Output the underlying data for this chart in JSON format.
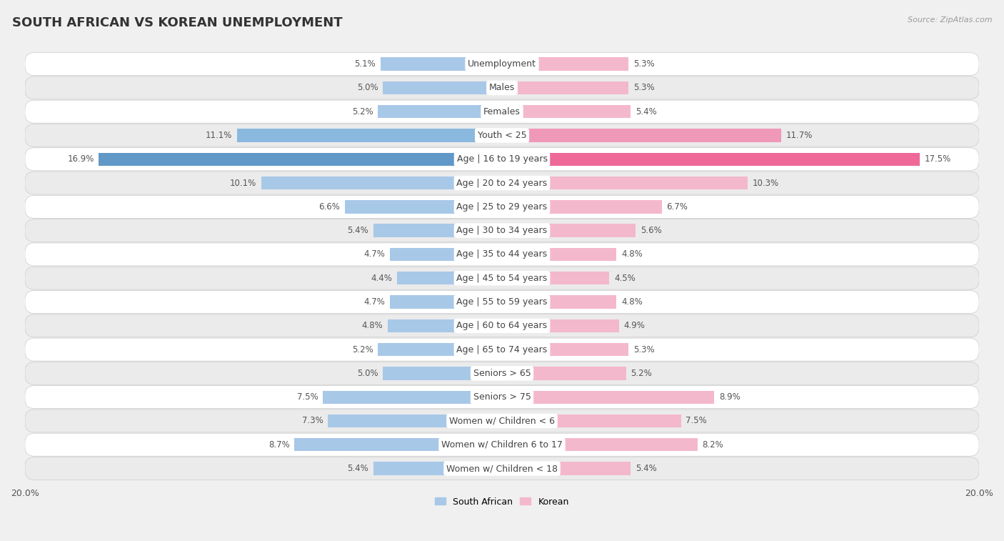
{
  "title": "SOUTH AFRICAN VS KOREAN UNEMPLOYMENT",
  "source": "Source: ZipAtlas.com",
  "categories": [
    "Unemployment",
    "Males",
    "Females",
    "Youth < 25",
    "Age | 16 to 19 years",
    "Age | 20 to 24 years",
    "Age | 25 to 29 years",
    "Age | 30 to 34 years",
    "Age | 35 to 44 years",
    "Age | 45 to 54 years",
    "Age | 55 to 59 years",
    "Age | 60 to 64 years",
    "Age | 65 to 74 years",
    "Seniors > 65",
    "Seniors > 75",
    "Women w/ Children < 6",
    "Women w/ Children 6 to 17",
    "Women w/ Children < 18"
  ],
  "south_african": [
    5.1,
    5.0,
    5.2,
    11.1,
    16.9,
    10.1,
    6.6,
    5.4,
    4.7,
    4.4,
    4.7,
    4.8,
    5.2,
    5.0,
    7.5,
    7.3,
    8.7,
    5.4
  ],
  "korean": [
    5.3,
    5.3,
    5.4,
    11.7,
    17.5,
    10.3,
    6.7,
    5.6,
    4.8,
    4.5,
    4.8,
    4.9,
    5.3,
    5.2,
    8.9,
    7.5,
    8.2,
    5.4
  ],
  "sa_color_normal": "#a8c8e8",
  "sa_color_youth": "#8ab8de",
  "sa_color_age1619": "#6098c8",
  "kr_color_normal": "#f4b8cc",
  "kr_color_youth": "#f098b8",
  "kr_color_age1619": "#ee6898",
  "bar_height": 0.55,
  "axis_max": 20.0,
  "bg_color": "#f0f0f0",
  "row_color_light": "#ffffff",
  "row_color_dark": "#ebebeb",
  "title_fontsize": 13,
  "label_fontsize": 9,
  "value_fontsize": 8.5,
  "legend_fontsize": 9,
  "axis_fontsize": 9
}
